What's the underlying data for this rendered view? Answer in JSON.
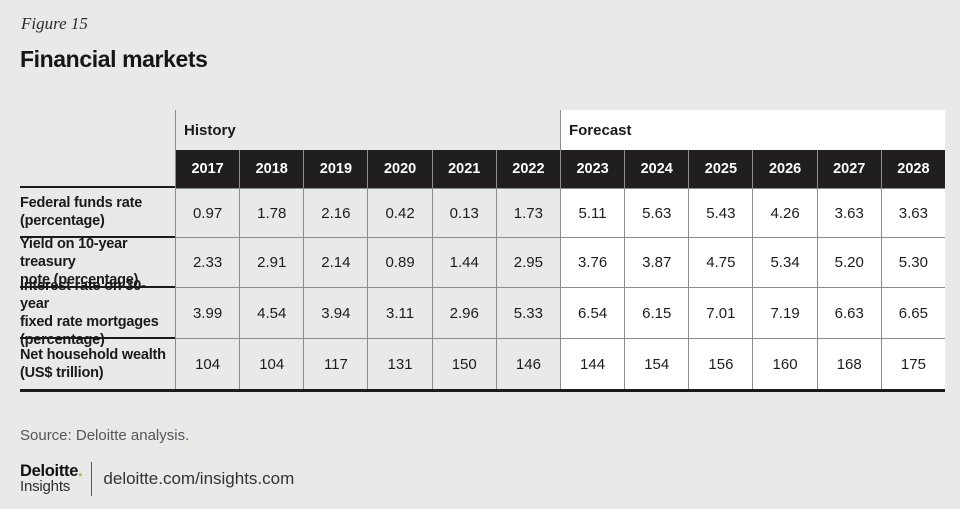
{
  "page": {
    "figure_label": "Figure 15",
    "title": "Financial markets",
    "source": "Source: Deloitte analysis.",
    "colors": {
      "background": "#e8eae7",
      "header_band_black": "#211e1f",
      "forecast_background": "#ffffff",
      "grid_line_gray": "#8c8e8c",
      "dark_rule": "#1c1a1a",
      "brand_green": "#86bc25"
    }
  },
  "footer": {
    "brand_top": "Deloitte",
    "brand_dot": ".",
    "brand_bottom": "Insights",
    "url": "deloitte.com/insights.com"
  },
  "chart_data": {
    "type": "table",
    "title": "Financial markets",
    "section_headers": {
      "history": "History",
      "forecast": "Forecast"
    },
    "history_years": [
      "2017",
      "2018",
      "2019",
      "2020",
      "2021",
      "2022"
    ],
    "forecast_years": [
      "2023",
      "2024",
      "2025",
      "2026",
      "2027",
      "2028"
    ],
    "columns": [
      "2017",
      "2018",
      "2019",
      "2020",
      "2021",
      "2022",
      "2023",
      "2024",
      "2025",
      "2026",
      "2027",
      "2028"
    ],
    "rows": [
      {
        "label": "Federal funds rate\n(percentage)",
        "values": [
          "0.97",
          "1.78",
          "2.16",
          "0.42",
          "0.13",
          "1.73",
          "5.11",
          "5.63",
          "5.43",
          "4.26",
          "3.63",
          "3.63"
        ]
      },
      {
        "label": "Yield on 10-year treasury\nnote (percentage)",
        "values": [
          "2.33",
          "2.91",
          "2.14",
          "0.89",
          "1.44",
          "2.95",
          "3.76",
          "3.87",
          "4.75",
          "5.34",
          "5.20",
          "5.30"
        ]
      },
      {
        "label": "Interest rate on 30-year\nfixed rate mortgages\n(percentage)",
        "values": [
          "3.99",
          "4.54",
          "3.94",
          "3.11",
          "2.96",
          "5.33",
          "6.54",
          "6.15",
          "7.01",
          "7.19",
          "6.63",
          "6.65"
        ]
      },
      {
        "label": "Net household wealth\n(US$ trillion)",
        "values": [
          "104",
          "104",
          "117",
          "131",
          "150",
          "146",
          "144",
          "154",
          "156",
          "160",
          "168",
          "175"
        ]
      }
    ]
  }
}
